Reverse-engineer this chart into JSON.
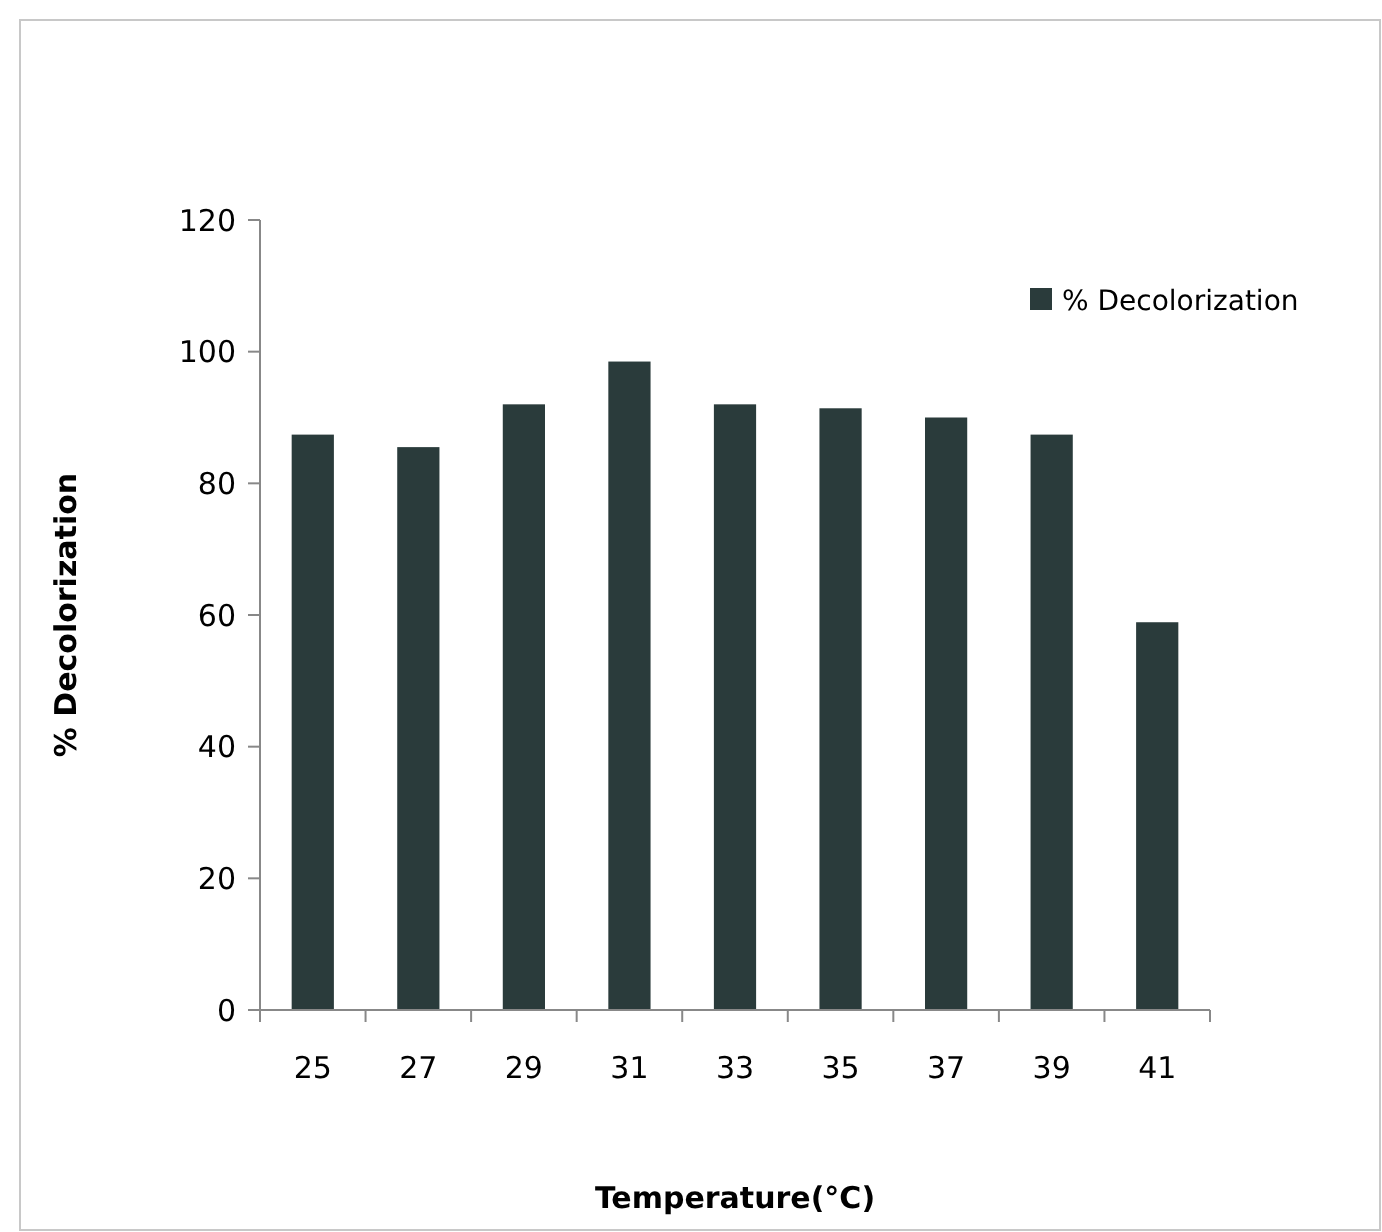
{
  "chart_data": {
    "type": "bar",
    "xlabel": "Temperature(°C)",
    "ylabel": "% Decolorization",
    "categories": [
      "25",
      "27",
      "29",
      "31",
      "33",
      "35",
      "37",
      "39",
      "41"
    ],
    "series": [
      {
        "name": "% Decolorization",
        "color": "#2a3b3b",
        "values": [
          87.4,
          85.5,
          92,
          98.5,
          92,
          91.4,
          90,
          87.4,
          58.9
        ]
      }
    ],
    "ylim": [
      0,
      120
    ],
    "yticks": [
      0,
      20,
      40,
      60,
      80,
      100,
      120
    ],
    "grid": false,
    "legend": "top right"
  }
}
